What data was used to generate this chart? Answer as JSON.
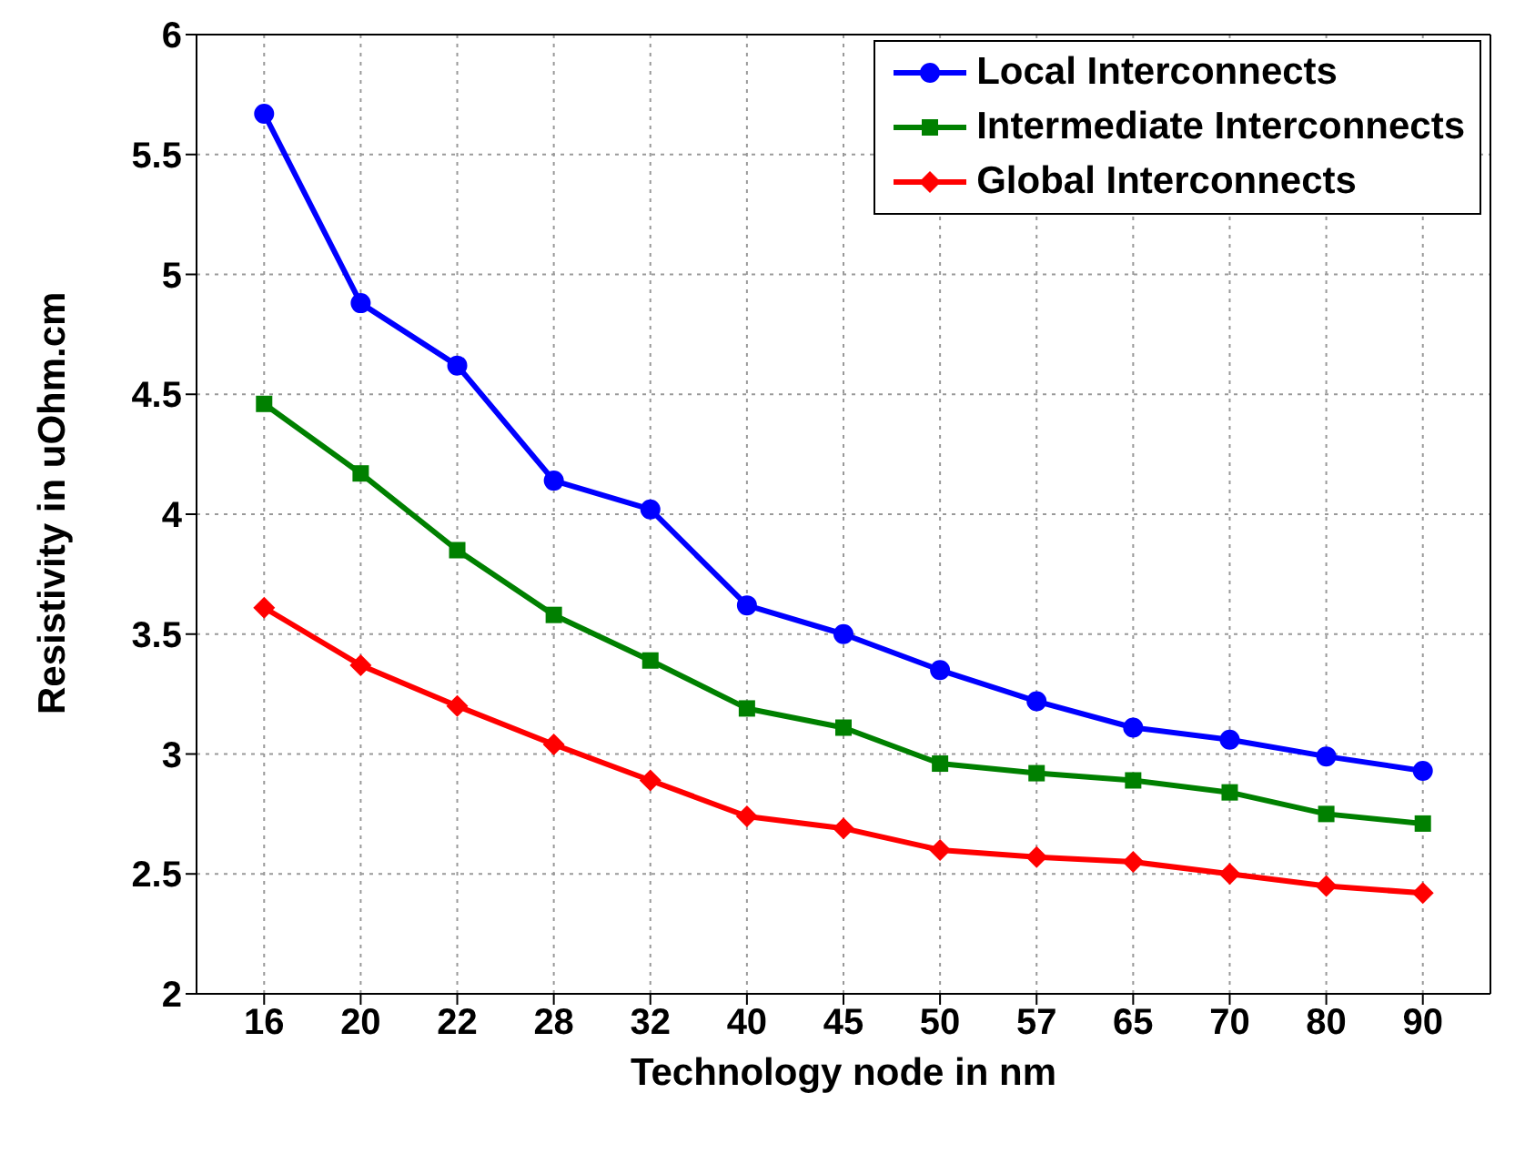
{
  "chart_data": {
    "type": "line",
    "xlabel": "Technology node in nm",
    "ylabel": "Resistivity in uOhm.cm",
    "categories": [
      "16",
      "20",
      "22",
      "28",
      "32",
      "40",
      "45",
      "50",
      "57",
      "65",
      "70",
      "80",
      "90"
    ],
    "series": [
      {
        "name": "Local Interconnects",
        "color": "#0000ff",
        "marker": "circle",
        "values": [
          5.67,
          4.88,
          4.62,
          4.14,
          4.02,
          3.62,
          3.5,
          3.35,
          3.22,
          3.11,
          3.06,
          2.99,
          2.93
        ]
      },
      {
        "name": "Intermediate Interconnects",
        "color": "#008000",
        "marker": "square",
        "values": [
          4.46,
          4.17,
          3.85,
          3.58,
          3.39,
          3.19,
          3.11,
          2.96,
          2.92,
          2.89,
          2.84,
          2.75,
          2.71
        ]
      },
      {
        "name": "Global Interconnects",
        "color": "#ff0000",
        "marker": "diamond",
        "values": [
          3.61,
          3.37,
          3.2,
          3.04,
          2.89,
          2.74,
          2.69,
          2.6,
          2.57,
          2.55,
          2.5,
          2.45,
          2.42
        ]
      }
    ],
    "ylim": [
      2,
      6
    ],
    "yticks": [
      2,
      2.5,
      3,
      3.5,
      4,
      4.5,
      5,
      5.5,
      6
    ],
    "grid": true,
    "legend": "top right",
    "line_style": "solid"
  }
}
